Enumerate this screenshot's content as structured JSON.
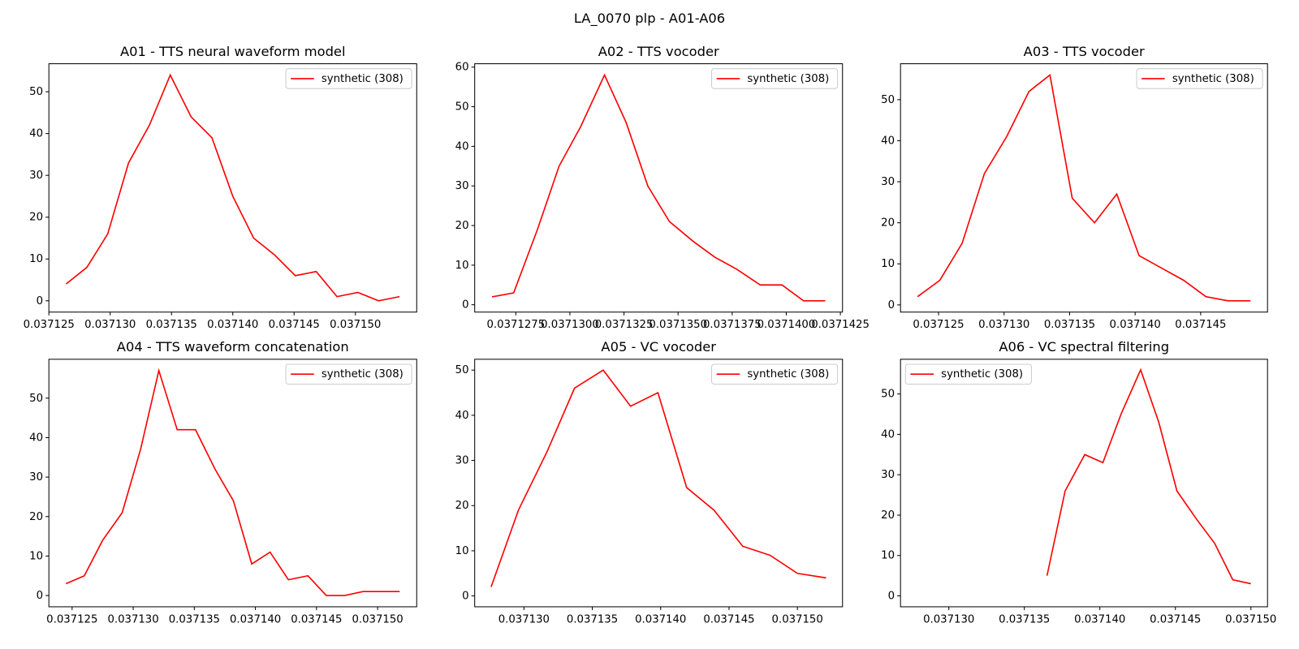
{
  "title": "LA_0070 plp - A01-A06",
  "chart_data": [
    {
      "type": "line",
      "title": "A01 - TTS neural waveform model",
      "x": [
        0.0371264,
        0.0371281,
        0.0371298,
        0.0371315,
        0.0371332,
        0.0371349,
        0.0371366,
        0.0371383,
        0.03714,
        0.0371417,
        0.0371434,
        0.0371451,
        0.0371468,
        0.0371485,
        0.0371502,
        0.0371519,
        0.0371536
      ],
      "series": [
        {
          "name": "synthetic (308)",
          "color": "#ff0000",
          "values": [
            4,
            8,
            16,
            33,
            42,
            54,
            44,
            39,
            25,
            15,
            11,
            6,
            7,
            1,
            2,
            0,
            1
          ]
        }
      ],
      "xlim": [
        0.037125,
        0.037155
      ],
      "ylim": [
        -2.7,
        56.7
      ],
      "xticks": [
        0.037125,
        {
          "value": 0.03713,
          "label": "0.037130"
        },
        0.037135,
        {
          "value": 0.03714,
          "label": "0.037140"
        },
        0.037145,
        {
          "value": 0.03715,
          "label": "0.037150"
        }
      ],
      "yticks": [
        0,
        10,
        20,
        30,
        40,
        50
      ],
      "legend": "upper right"
    },
    {
      "type": "line",
      "title": "A02 - TTS vocoder",
      "x": [
        0.0371264,
        0.0371274,
        0.0371285,
        0.0371295,
        0.0371305,
        0.0371316,
        0.0371326,
        0.0371336,
        0.0371346,
        0.0371357,
        0.0371367,
        0.0371377,
        0.0371388,
        0.0371398,
        0.0371408,
        0.0371418
      ],
      "series": [
        {
          "name": "synthetic (308)",
          "color": "#ff0000",
          "values": [
            2,
            3,
            19,
            35,
            45,
            58,
            46,
            30,
            21,
            16,
            12,
            9,
            5,
            5,
            1,
            1
          ]
        }
      ],
      "xlim": [
        0.0371256,
        0.0371426
      ],
      "ylim": [
        -1.85,
        60.85
      ],
      "xticks": [
        0.0371275,
        {
          "value": 0.03713,
          "label": "0.0371300"
        },
        0.0371325,
        {
          "value": 0.037135,
          "label": "0.0371350"
        },
        0.0371375,
        {
          "value": 0.03714,
          "label": "0.0371400"
        },
        0.0371425
      ],
      "yticks": [
        0,
        10,
        20,
        30,
        40,
        50,
        60
      ],
      "legend": "upper right"
    },
    {
      "type": "line",
      "title": "A03 - TTS vocoder",
      "x": [
        0.0371234,
        0.0371251,
        0.0371268,
        0.0371285,
        0.0371302,
        0.0371319,
        0.0371335,
        0.0371352,
        0.0371369,
        0.0371386,
        0.0371403,
        0.037142,
        0.0371437,
        0.0371454,
        0.0371471,
        0.0371488
      ],
      "series": [
        {
          "name": "synthetic (308)",
          "color": "#ff0000",
          "values": [
            2,
            6,
            15,
            32,
            41,
            52,
            56,
            26,
            20,
            27,
            12,
            9,
            6,
            2,
            1,
            1
          ]
        }
      ],
      "xlim": [
        0.0371221,
        0.0371501
      ],
      "ylim": [
        -1.75,
        58.75
      ],
      "xticks": [
        0.037125,
        {
          "value": 0.03713,
          "label": "0.037130"
        },
        0.037135,
        {
          "value": 0.03714,
          "label": "0.037140"
        },
        0.037145
      ],
      "yticks": [
        0,
        10,
        20,
        30,
        40,
        50
      ],
      "legend": "upper right"
    },
    {
      "type": "line",
      "title": "A04 - TTS waveform concatenation",
      "x": [
        0.0371245,
        0.037126,
        0.0371275,
        0.0371291,
        0.0371306,
        0.0371321,
        0.0371336,
        0.0371351,
        0.0371367,
        0.0371382,
        0.0371397,
        0.0371412,
        0.0371427,
        0.0371443,
        0.0371458,
        0.0371473,
        0.0371488,
        0.0371503,
        0.0371518
      ],
      "series": [
        {
          "name": "synthetic (308)",
          "color": "#ff0000",
          "values": [
            3,
            5,
            14,
            21,
            37,
            57,
            42,
            42,
            32,
            24,
            8,
            11,
            4,
            5,
            0,
            0,
            1,
            1,
            1
          ]
        }
      ],
      "xlim": [
        0.0371231,
        0.0371532
      ],
      "ylim": [
        -2.85,
        59.85
      ],
      "xticks": [
        0.037125,
        {
          "value": 0.03713,
          "label": "0.037130"
        },
        0.037135,
        {
          "value": 0.03714,
          "label": "0.037140"
        },
        0.037145,
        {
          "value": 0.03715,
          "label": "0.037150"
        }
      ],
      "yticks": [
        0,
        10,
        20,
        30,
        40,
        50
      ],
      "legend": "upper right"
    },
    {
      "type": "line",
      "title": "A05 - VC vocoder",
      "x": [
        0.0371276,
        0.0371296,
        0.0371317,
        0.0371337,
        0.0371358,
        0.0371378,
        0.0371398,
        0.0371419,
        0.0371439,
        0.037146,
        0.037148,
        0.03715,
        0.0371521
      ],
      "series": [
        {
          "name": "synthetic (308)",
          "color": "#ff0000",
          "values": [
            2,
            19,
            32,
            46,
            50,
            42,
            45,
            24,
            19,
            11,
            9,
            5,
            4
          ]
        }
      ],
      "xlim": [
        0.0371264,
        0.0371533
      ],
      "ylim": [
        -2.4,
        52.4
      ],
      "xticks": [
        {
          "value": 0.03713,
          "label": "0.037130"
        },
        0.037135,
        {
          "value": 0.03714,
          "label": "0.037140"
        },
        0.037145,
        {
          "value": 0.03715,
          "label": "0.037150"
        }
      ],
      "yticks": [
        0,
        10,
        20,
        30,
        40,
        50
      ],
      "legend": "upper right"
    },
    {
      "type": "line",
      "title": "A06 - VC spectral filtering",
      "x": [
        0.0371365,
        0.0371377,
        0.037139,
        0.0371402,
        0.0371414,
        0.0371427,
        0.0371439,
        0.0371451,
        0.0371464,
        0.0371476,
        0.0371488,
        0.03715
      ],
      "series": [
        {
          "name": "synthetic (308)",
          "color": "#ff0000",
          "values": [
            5,
            26,
            35,
            33,
            45,
            56,
            43,
            26,
            19,
            13,
            4,
            3
          ]
        }
      ],
      "xlim": [
        0.0371268,
        0.0371511
      ],
      "ylim": [
        -2.7,
        58.6
      ],
      "xticks": [
        {
          "value": 0.03713,
          "label": "0.037130"
        },
        0.037135,
        {
          "value": 0.03714,
          "label": "0.037140"
        },
        0.037145,
        {
          "value": 0.03715,
          "label": "0.037150"
        }
      ],
      "yticks": [
        0,
        10,
        20,
        30,
        40,
        50
      ],
      "legend": "upper left"
    }
  ]
}
